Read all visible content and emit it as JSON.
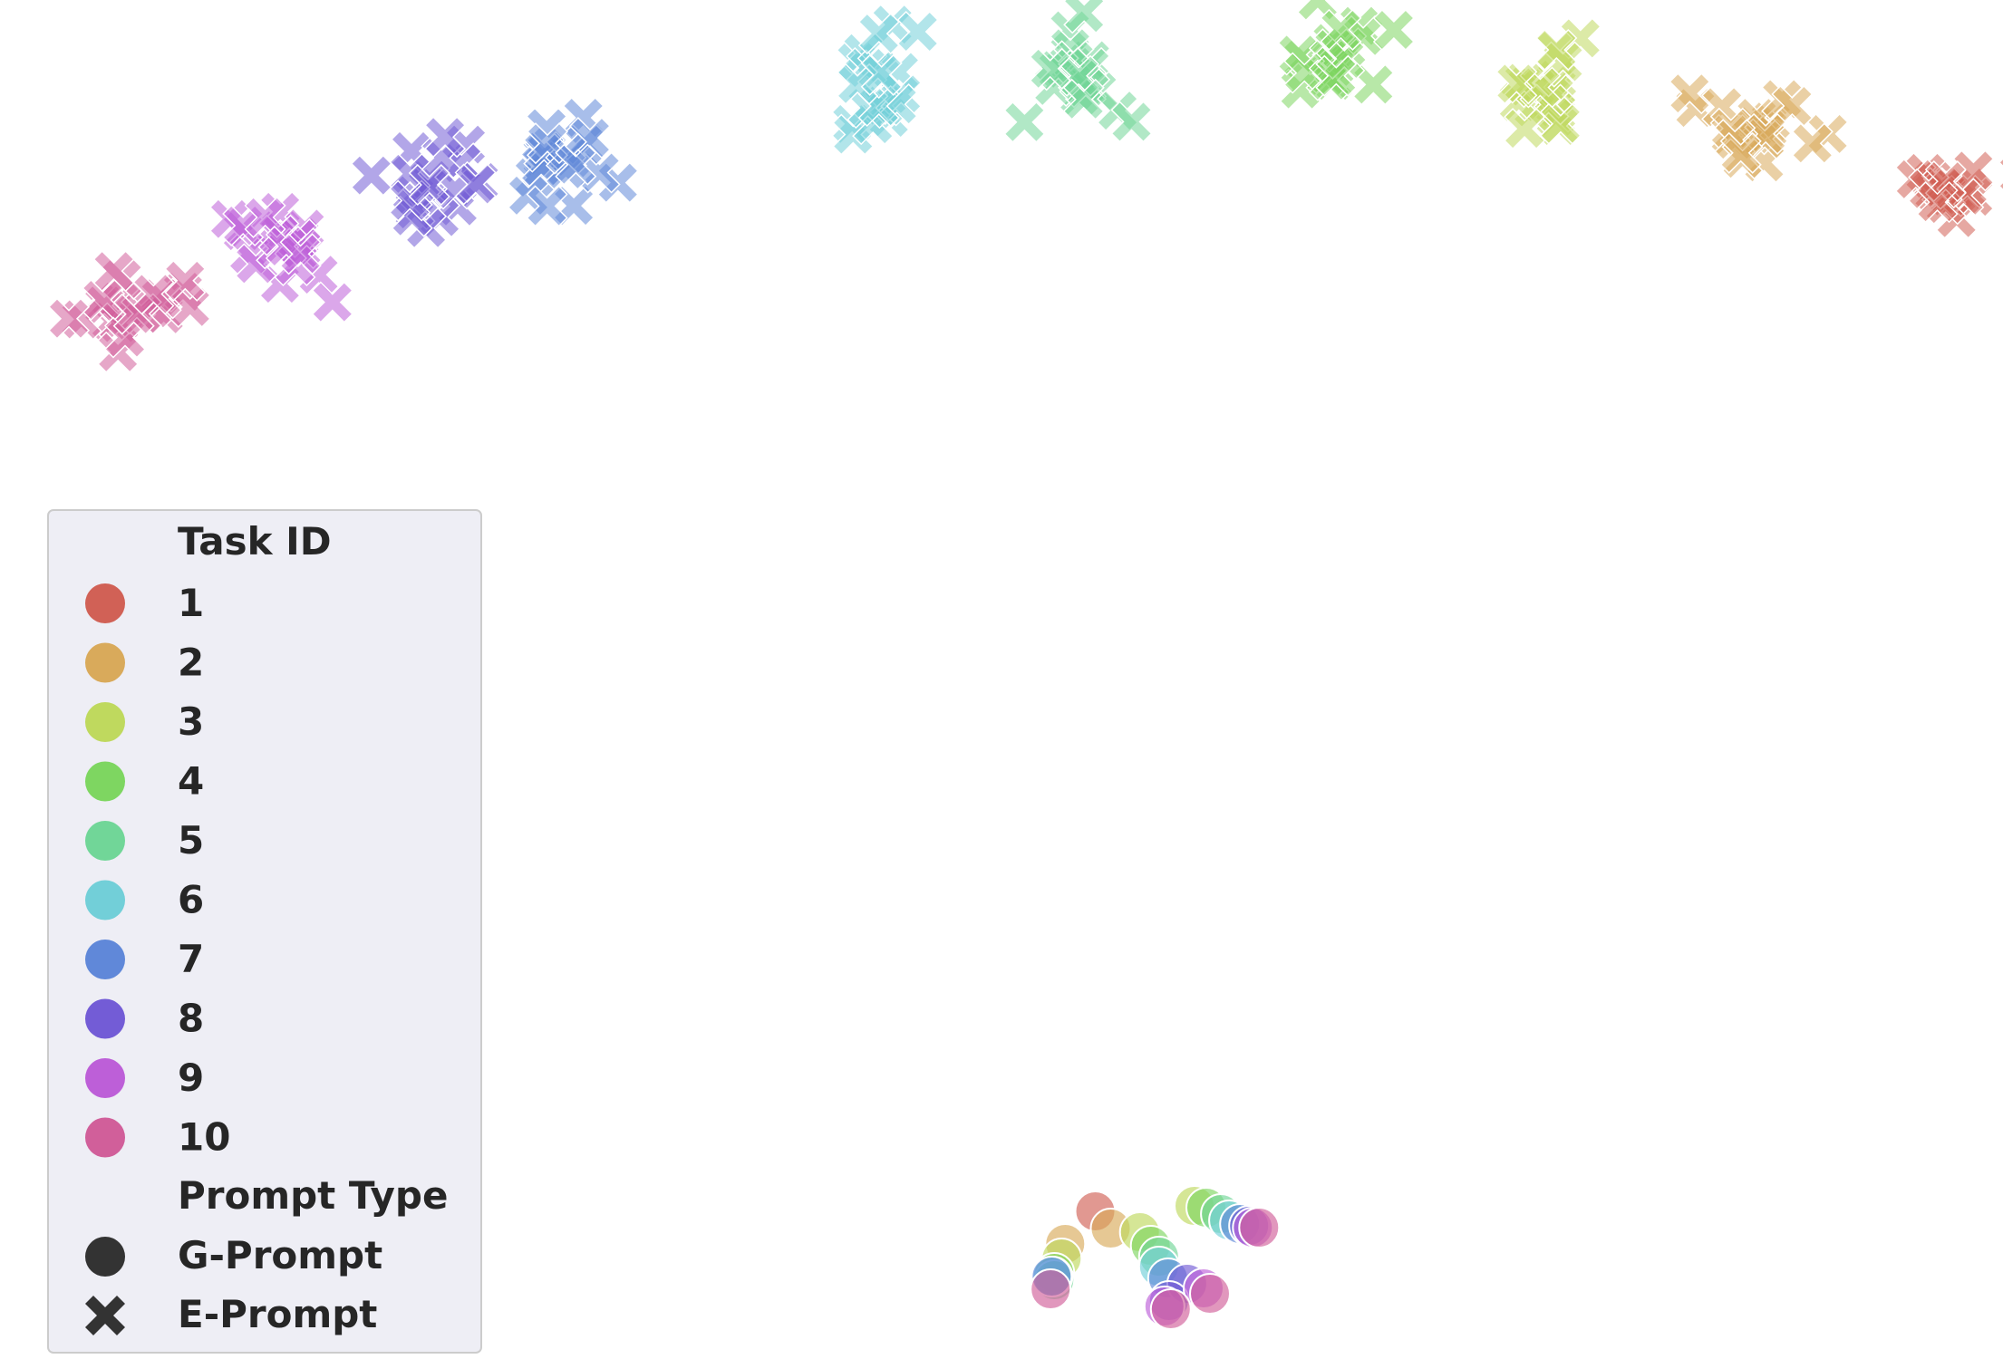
{
  "chart_data": {
    "type": "scatter",
    "title": "",
    "xlabel": "",
    "ylabel": "",
    "axes_visible": false,
    "grid": false,
    "xlim": [
      0,
      220
    ],
    "ylim": [
      -150,
      0
    ],
    "legend": {
      "placement": "bottom-left",
      "hue_title": "Task ID",
      "style_title": "Prompt Type",
      "style_entries": [
        {
          "label": "G-Prompt",
          "marker": "circle"
        },
        {
          "label": "E-Prompt",
          "marker": "x"
        }
      ]
    },
    "series": [
      {
        "task": "1",
        "color": "#d16156",
        "e_prompt": {
          "center": [
            214.5,
            -20.0
          ],
          "spread": [
            2.8,
            2.0
          ],
          "n": 20
        },
        "g_prompt": [
          [
            120.3,
            -133.7
          ]
        ]
      },
      {
        "task": "2",
        "color": "#d9aa5b",
        "e_prompt": {
          "center": [
            192.8,
            -15.0
          ],
          "spread": [
            3.5,
            1.8
          ],
          "n": 20
        },
        "g_prompt": [
          [
            122.0,
            -135.6
          ],
          [
            117.0,
            -137.3
          ]
        ]
      },
      {
        "task": "3",
        "color": "#bfd95e",
        "e_prompt": {
          "center": [
            169.4,
            -10.0
          ],
          "spread": [
            2.4,
            2.6
          ],
          "n": 20
        },
        "g_prompt": [
          [
            131.2,
            -133.1
          ],
          [
            125.2,
            -136.0
          ],
          [
            116.6,
            -138.9
          ]
        ]
      },
      {
        "task": "4",
        "color": "#7ed661",
        "e_prompt": {
          "center": [
            146.2,
            -6.8
          ],
          "spread": [
            2.8,
            2.6
          ],
          "n": 20
        },
        "g_prompt": [
          [
            132.5,
            -133.3
          ],
          [
            126.4,
            -137.5
          ],
          [
            115.8,
            -140.5
          ]
        ]
      },
      {
        "task": "5",
        "color": "#71d698",
        "e_prompt": {
          "center": [
            117.8,
            -8.2
          ],
          "spread": [
            2.8,
            3.5
          ],
          "n": 20
        },
        "g_prompt": [
          [
            134.1,
            -134.0
          ],
          [
            127.3,
            -138.7
          ],
          [
            115.8,
            -141.3
          ]
        ]
      },
      {
        "task": "6",
        "color": "#72cfd8",
        "e_prompt": {
          "center": [
            95.8,
            -10.5
          ],
          "spread": [
            2.6,
            3.8
          ],
          "n": 20
        },
        "g_prompt": [
          [
            135.0,
            -134.7
          ],
          [
            127.3,
            -139.8
          ],
          [
            115.6,
            -140.9
          ]
        ]
      },
      {
        "task": "7",
        "color": "#6088d9",
        "e_prompt": {
          "center": [
            62.4,
            -17.3
          ],
          "spread": [
            3.0,
            3.3
          ],
          "n": 20
        },
        "g_prompt": [
          [
            136.2,
            -135.1
          ],
          [
            128.3,
            -141.1
          ],
          [
            115.5,
            -140.9
          ]
        ]
      },
      {
        "task": "8",
        "color": "#735cd6",
        "e_prompt": {
          "center": [
            48.0,
            -20.5
          ],
          "spread": [
            3.2,
            3.0
          ],
          "n": 20
        },
        "g_prompt": [
          [
            137.2,
            -135.3
          ],
          [
            130.4,
            -141.7
          ],
          [
            128.4,
            -143.6
          ]
        ]
      },
      {
        "task": "9",
        "color": "#bd5fd8",
        "e_prompt": {
          "center": [
            31.3,
            -27.2
          ],
          "spread": [
            3.0,
            2.6
          ],
          "n": 20
        },
        "g_prompt": [
          [
            137.6,
            -135.5
          ],
          [
            132.2,
            -142.2
          ],
          [
            127.9,
            -144.2
          ]
        ]
      },
      {
        "task": "10",
        "color": "#d15f9a",
        "e_prompt": {
          "center": [
            15.3,
            -33.7
          ],
          "spread": [
            3.4,
            2.1
          ],
          "n": 20
        },
        "g_prompt": [
          [
            138.3,
            -135.5
          ],
          [
            132.9,
            -142.8
          ],
          [
            115.4,
            -142.3
          ],
          [
            128.6,
            -144.5
          ]
        ]
      }
    ]
  },
  "legend_marker_color": "#333333"
}
